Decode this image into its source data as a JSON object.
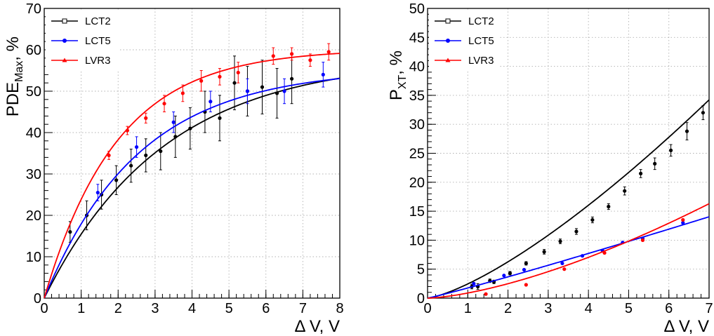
{
  "chart_data": [
    {
      "type": "scatter",
      "ylabel_parts": [
        "PDE",
        "Max",
        ", %"
      ],
      "xlabel": "Δ V, V",
      "xlim": [
        0,
        8
      ],
      "ylim": [
        0,
        70
      ],
      "xticks": [
        0,
        1,
        2,
        3,
        4,
        5,
        6,
        7,
        8
      ],
      "yticks": [
        0,
        10,
        20,
        30,
        40,
        50,
        60,
        70
      ],
      "grid": true,
      "legend_position": "top-left",
      "series": [
        {
          "name": "LCT2",
          "color": "#000000",
          "marker": "open-square",
          "points": [
            {
              "x": 0.7,
              "y": 16.0,
              "err": 2.5
            },
            {
              "x": 1.15,
              "y": 20.0,
              "err": 3.5
            },
            {
              "x": 1.55,
              "y": 25.0,
              "err": 3.5
            },
            {
              "x": 1.95,
              "y": 28.5,
              "err": 3.5
            },
            {
              "x": 2.35,
              "y": 32.0,
              "err": 4.0
            },
            {
              "x": 2.75,
              "y": 34.5,
              "err": 4.0
            },
            {
              "x": 3.15,
              "y": 35.5,
              "err": 4.5
            },
            {
              "x": 3.55,
              "y": 39.0,
              "err": 5.0
            },
            {
              "x": 3.95,
              "y": 41.0,
              "err": 5.0
            },
            {
              "x": 4.35,
              "y": 45.0,
              "err": 5.0
            },
            {
              "x": 4.75,
              "y": 43.5,
              "err": 5.5
            },
            {
              "x": 5.15,
              "y": 52.0,
              "err": 6.5
            },
            {
              "x": 5.5,
              "y": 50.0,
              "err": 6.0
            },
            {
              "x": 5.9,
              "y": 51.0,
              "err": 6.5
            },
            {
              "x": 6.3,
              "y": 49.5,
              "err": 6.0
            },
            {
              "x": 6.7,
              "y": 53.0,
              "err": 6.0
            }
          ],
          "fit": {
            "a": 58.0,
            "b": 0.31
          }
        },
        {
          "name": "LCT5",
          "color": "#0000ff",
          "marker": "filled-circle",
          "points": [
            {
              "x": 1.45,
              "y": 25.5,
              "err": 2.0
            },
            {
              "x": 2.5,
              "y": 36.5,
              "err": 2.5
            },
            {
              "x": 3.5,
              "y": 42.5,
              "err": 2.5
            },
            {
              "x": 4.5,
              "y": 47.5,
              "err": 2.5
            },
            {
              "x": 5.5,
              "y": 50.0,
              "err": 3.0
            },
            {
              "x": 6.5,
              "y": 50.0,
              "err": 3.0
            },
            {
              "x": 7.55,
              "y": 54.0,
              "err": 3.0
            }
          ],
          "fit": {
            "a": 55.5,
            "b": 0.39
          }
        },
        {
          "name": "LVR3",
          "color": "#ff0000",
          "marker": "filled-triangle",
          "points": [
            {
              "x": 1.75,
              "y": 34.5,
              "err": 1.0
            },
            {
              "x": 2.25,
              "y": 40.5,
              "err": 1.0
            },
            {
              "x": 2.75,
              "y": 43.5,
              "err": 1.2
            },
            {
              "x": 3.25,
              "y": 47.0,
              "err": 2.0
            },
            {
              "x": 3.75,
              "y": 49.5,
              "err": 2.0
            },
            {
              "x": 4.25,
              "y": 52.5,
              "err": 2.5
            },
            {
              "x": 4.75,
              "y": 53.5,
              "err": 2.0
            },
            {
              "x": 5.25,
              "y": 54.5,
              "err": 2.5
            },
            {
              "x": 6.2,
              "y": 58.5,
              "err": 2.0
            },
            {
              "x": 6.7,
              "y": 59.0,
              "err": 1.5
            },
            {
              "x": 7.2,
              "y": 57.5,
              "err": 1.5
            },
            {
              "x": 7.7,
              "y": 59.5,
              "err": 2.0
            }
          ],
          "fit": {
            "a": 60.2,
            "b": 0.505
          }
        }
      ]
    },
    {
      "type": "scatter",
      "ylabel_parts": [
        "P",
        "XT",
        ", %"
      ],
      "xlabel": "Δ V, V",
      "xlim": [
        0,
        7
      ],
      "ylim": [
        0,
        50
      ],
      "xticks": [
        0,
        1,
        2,
        3,
        4,
        5,
        6,
        7
      ],
      "yticks": [
        0,
        5,
        10,
        15,
        20,
        25,
        30,
        35,
        40,
        45,
        50
      ],
      "grid": true,
      "legend_position": "top-left",
      "series": [
        {
          "name": "LCT2",
          "color": "#000000",
          "marker": "open-square",
          "points": [
            {
              "x": 1.1,
              "y": 2.0,
              "err": 0.4
            },
            {
              "x": 1.25,
              "y": 2.0,
              "err": 0.5
            },
            {
              "x": 1.55,
              "y": 3.0,
              "err": 0.3
            },
            {
              "x": 1.65,
              "y": 2.8,
              "err": 0.3
            },
            {
              "x": 2.05,
              "y": 4.3,
              "err": 0.3
            },
            {
              "x": 2.45,
              "y": 6.0,
              "err": 0.3
            },
            {
              "x": 2.9,
              "y": 8.0,
              "err": 0.4
            },
            {
              "x": 3.3,
              "y": 9.8,
              "err": 0.4
            },
            {
              "x": 3.7,
              "y": 11.5,
              "err": 0.5
            },
            {
              "x": 4.1,
              "y": 13.5,
              "err": 0.5
            },
            {
              "x": 4.5,
              "y": 15.8,
              "err": 0.5
            },
            {
              "x": 4.9,
              "y": 18.5,
              "err": 0.7
            },
            {
              "x": 5.3,
              "y": 21.5,
              "err": 0.7
            },
            {
              "x": 5.65,
              "y": 23.2,
              "err": 1.0
            },
            {
              "x": 6.05,
              "y": 25.5,
              "err": 1.0
            },
            {
              "x": 6.45,
              "y": 28.8,
              "err": 1.5
            },
            {
              "x": 6.85,
              "y": 32.0,
              "err": 1.2
            }
          ],
          "fit": {
            "k": 2.45,
            "p": 1.355
          }
        },
        {
          "name": "LCT5",
          "color": "#0000ff",
          "marker": "filled-circle",
          "points": [
            {
              "x": 1.15,
              "y": 2.5
            },
            {
              "x": 1.9,
              "y": 3.9
            },
            {
              "x": 2.4,
              "y": 4.9
            },
            {
              "x": 3.35,
              "y": 6.0
            },
            {
              "x": 3.85,
              "y": 7.3
            },
            {
              "x": 4.35,
              "y": 8.2
            },
            {
              "x": 4.85,
              "y": 9.6
            },
            {
              "x": 5.35,
              "y": 10.3
            },
            {
              "x": 6.35,
              "y": 13.0
            }
          ],
          "fit": {
            "k": 1.75,
            "p": 1.07
          }
        },
        {
          "name": "LVR3",
          "color": "#ff0000",
          "marker": "filled-triangle",
          "points": [
            {
              "x": 1.45,
              "y": 0.7
            },
            {
              "x": 2.45,
              "y": 2.3
            },
            {
              "x": 3.4,
              "y": 5.0
            },
            {
              "x": 4.4,
              "y": 7.8
            },
            {
              "x": 5.35,
              "y": 10.0
            },
            {
              "x": 6.35,
              "y": 13.5
            }
          ],
          "fit": {
            "k": 0.88,
            "p": 1.5
          }
        }
      ]
    }
  ]
}
